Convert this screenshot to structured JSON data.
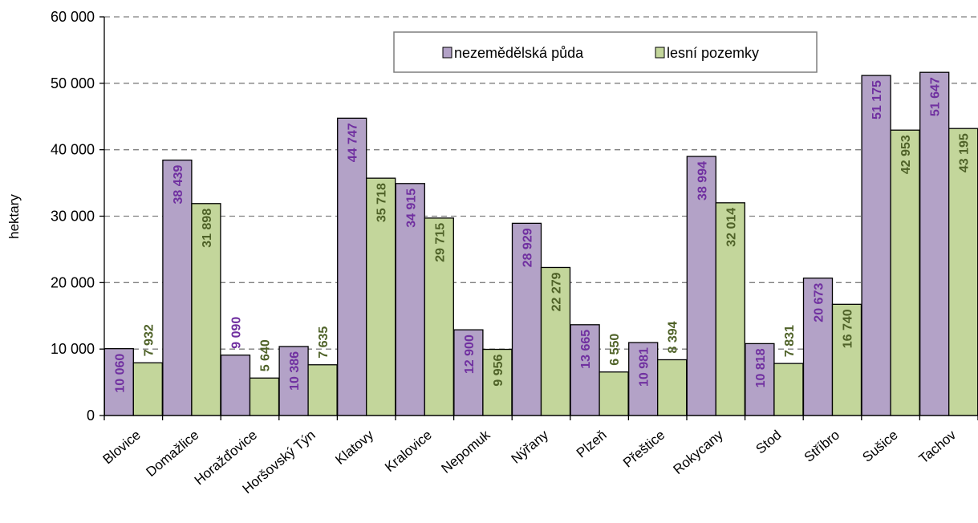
{
  "chart_data": {
    "type": "bar",
    "categories": [
      "Blovice",
      "Domažlice",
      "Horažďovice",
      "Horšovský Týn",
      "Klatovy",
      "Kralovice",
      "Nepomuk",
      "Nýřany",
      "Plzeň",
      "Přeštice",
      "Rokycany",
      "Stod",
      "Stříbro",
      "Sušice",
      "Tachov"
    ],
    "series": [
      {
        "name": "nezemědělská půda",
        "color": "#b3a2c7",
        "label_color": "#7030a0",
        "values": [
          10060,
          38439,
          9090,
          10386,
          44747,
          34915,
          12900,
          28929,
          13665,
          10981,
          38994,
          10818,
          20673,
          51175,
          51647
        ],
        "labels": [
          "10 060",
          "38 439",
          "9 090",
          "10 386",
          "44 747",
          "34 915",
          "12 900",
          "28 929",
          "13 665",
          "10 981",
          "38 994",
          "10 818",
          "20 673",
          "51 175",
          "51 647"
        ]
      },
      {
        "name": "lesní pozemky",
        "color": "#c3d69b",
        "label_color": "#4f6228",
        "values": [
          7932,
          31898,
          5640,
          7635,
          35718,
          29715,
          9956,
          22279,
          6550,
          8394,
          32014,
          7831,
          16740,
          42953,
          43195
        ],
        "labels": [
          "7 932",
          "31 898",
          "5 640",
          "7 635",
          "35 718",
          "29 715",
          "9 956",
          "22 279",
          "6 550",
          "8 394",
          "32 014",
          "7 831",
          "16 740",
          "42 953",
          "43 195"
        ]
      }
    ],
    "title": "",
    "xlabel": "",
    "ylabel": "hektary",
    "ylim": [
      0,
      60000
    ],
    "yticks": [
      0,
      10000,
      20000,
      30000,
      40000,
      50000,
      60000
    ],
    "ytick_labels": [
      "0",
      "10 000",
      "20 000",
      "30 000",
      "40 000",
      "50 000",
      "60 000"
    ],
    "grid": "horizontal-dashed",
    "legend_position": "top-center"
  }
}
